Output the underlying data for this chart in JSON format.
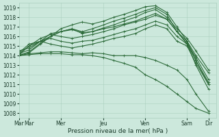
{
  "xlabel": "Pression niveau de la mer( hPa )",
  "background_color": "#cce8dc",
  "grid_color": "#aacfbf",
  "line_color": "#2d6b3a",
  "ylim": [
    1007.5,
    1019.5
  ],
  "yticks": [
    1008,
    1009,
    1010,
    1011,
    1012,
    1013,
    1014,
    1015,
    1016,
    1017,
    1018,
    1019
  ],
  "xtick_labels": [
    "Mar",
    "Mar",
    "Mer",
    "Jeu",
    "Ven",
    "Sam",
    "Dir"
  ],
  "xtick_positions": [
    0,
    0.08,
    0.33,
    0.67,
    1.0,
    1.33,
    1.5
  ],
  "xlim": [
    0,
    1.56
  ],
  "series": [
    {
      "x": [
        0,
        0.08,
        0.17,
        0.25,
        0.33,
        0.42,
        0.5,
        0.58,
        0.67,
        0.75,
        0.83,
        0.92,
        1.0,
        1.08,
        1.17,
        1.25,
        1.33,
        1.4,
        1.5
      ],
      "y": [
        1014.1,
        1014.3,
        1015.2,
        1016.0,
        1016.8,
        1017.2,
        1017.5,
        1017.3,
        1017.6,
        1018.0,
        1018.3,
        1018.7,
        1019.1,
        1019.2,
        1018.5,
        1017.0,
        1015.5,
        1013.5,
        1011.0
      ]
    },
    {
      "x": [
        0,
        0.08,
        0.17,
        0.25,
        0.33,
        0.42,
        0.5,
        0.58,
        0.67,
        0.75,
        0.83,
        0.92,
        1.0,
        1.08,
        1.17,
        1.25,
        1.33,
        1.4,
        1.5
      ],
      "y": [
        1014.2,
        1014.6,
        1015.5,
        1016.3,
        1016.5,
        1016.8,
        1016.5,
        1016.8,
        1017.2,
        1017.6,
        1017.9,
        1018.3,
        1018.7,
        1019.0,
        1018.3,
        1016.5,
        1015.2,
        1013.0,
        1010.5
      ]
    },
    {
      "x": [
        0,
        0.08,
        0.17,
        0.25,
        0.33,
        0.42,
        0.5,
        0.58,
        0.67,
        0.75,
        0.83,
        0.92,
        1.0,
        1.08,
        1.17,
        1.25,
        1.33,
        1.4,
        1.5
      ],
      "y": [
        1014.0,
        1014.4,
        1015.3,
        1016.0,
        1016.5,
        1016.7,
        1016.4,
        1016.5,
        1016.9,
        1017.2,
        1017.6,
        1018.0,
        1018.5,
        1018.8,
        1018.0,
        1016.8,
        1015.8,
        1014.5,
        1012.5
      ]
    },
    {
      "x": [
        0,
        0.08,
        0.17,
        0.25,
        0.33,
        0.42,
        0.5,
        0.58,
        0.67,
        0.75,
        0.83,
        0.92,
        1.0,
        1.08,
        1.17,
        1.25,
        1.33,
        1.4,
        1.5
      ],
      "y": [
        1014.1,
        1015.0,
        1015.8,
        1016.2,
        1016.0,
        1015.8,
        1016.0,
        1016.2,
        1016.5,
        1016.8,
        1017.2,
        1017.5,
        1017.8,
        1018.2,
        1017.8,
        1016.5,
        1015.3,
        1013.8,
        1011.5
      ]
    },
    {
      "x": [
        0,
        0.08,
        0.17,
        0.25,
        0.33,
        0.42,
        0.5,
        0.58,
        0.67,
        0.75,
        0.83,
        0.92,
        1.0,
        1.08,
        1.17,
        1.25,
        1.33,
        1.4,
        1.5
      ],
      "y": [
        1014.3,
        1015.2,
        1015.5,
        1015.8,
        1015.5,
        1015.3,
        1015.5,
        1015.6,
        1015.9,
        1016.2,
        1016.5,
        1016.8,
        1017.2,
        1017.6,
        1017.2,
        1016.0,
        1015.2,
        1013.5,
        1011.2
      ]
    },
    {
      "x": [
        0,
        0.08,
        0.17,
        0.25,
        0.33,
        0.42,
        0.5,
        0.58,
        0.67,
        0.75,
        0.83,
        0.92,
        1.0,
        1.08,
        1.17,
        1.25,
        1.33,
        1.4,
        1.5
      ],
      "y": [
        1014.2,
        1015.0,
        1015.5,
        1015.2,
        1015.0,
        1014.8,
        1015.0,
        1015.2,
        1015.5,
        1015.8,
        1016.0,
        1016.3,
        1016.8,
        1017.2,
        1016.8,
        1015.5,
        1015.0,
        1013.2,
        1011.0
      ]
    },
    {
      "x": [
        0,
        0.08,
        0.17,
        0.25,
        0.33,
        0.42,
        0.5,
        0.58,
        0.67,
        0.75,
        0.83,
        0.92,
        1.0,
        1.08,
        1.17,
        1.25,
        1.33,
        1.4,
        1.5
      ],
      "y": [
        1014.0,
        1014.2,
        1014.3,
        1014.4,
        1014.4,
        1014.3,
        1014.2,
        1014.3,
        1014.2,
        1014.0,
        1014.0,
        1014.0,
        1013.8,
        1013.5,
        1013.0,
        1012.5,
        1011.5,
        1010.0,
        1008.2
      ]
    },
    {
      "x": [
        0,
        0.08,
        0.17,
        0.25,
        0.33,
        0.42,
        0.5,
        0.58,
        0.67,
        0.75,
        0.83,
        0.92,
        1.0,
        1.08,
        1.17,
        1.25,
        1.33,
        1.4,
        1.5
      ],
      "y": [
        1014.0,
        1014.1,
        1014.2,
        1014.2,
        1014.2,
        1014.1,
        1014.1,
        1014.0,
        1013.8,
        1013.5,
        1013.2,
        1012.8,
        1012.0,
        1011.5,
        1010.8,
        1010.0,
        1009.2,
        1008.5,
        1008.0
      ]
    },
    {
      "x": [
        0,
        0.08,
        0.17,
        0.25,
        0.33,
        0.42,
        0.5,
        0.58,
        0.67,
        0.75,
        0.83,
        0.92,
        1.0,
        1.08,
        1.17,
        1.25,
        1.33,
        1.4,
        1.5
      ],
      "y": [
        1014.5,
        1014.8,
        1015.5,
        1016.0,
        1016.5,
        1016.8,
        1016.3,
        1016.5,
        1016.8,
        1017.0,
        1017.3,
        1017.6,
        1018.0,
        1018.4,
        1017.8,
        1016.5,
        1015.5,
        1014.0,
        1012.2
      ]
    }
  ],
  "marker": "+",
  "markersize": 2.5,
  "linewidth": 0.8,
  "tick_fontsize": 5.5,
  "xlabel_fontsize": 6.5
}
